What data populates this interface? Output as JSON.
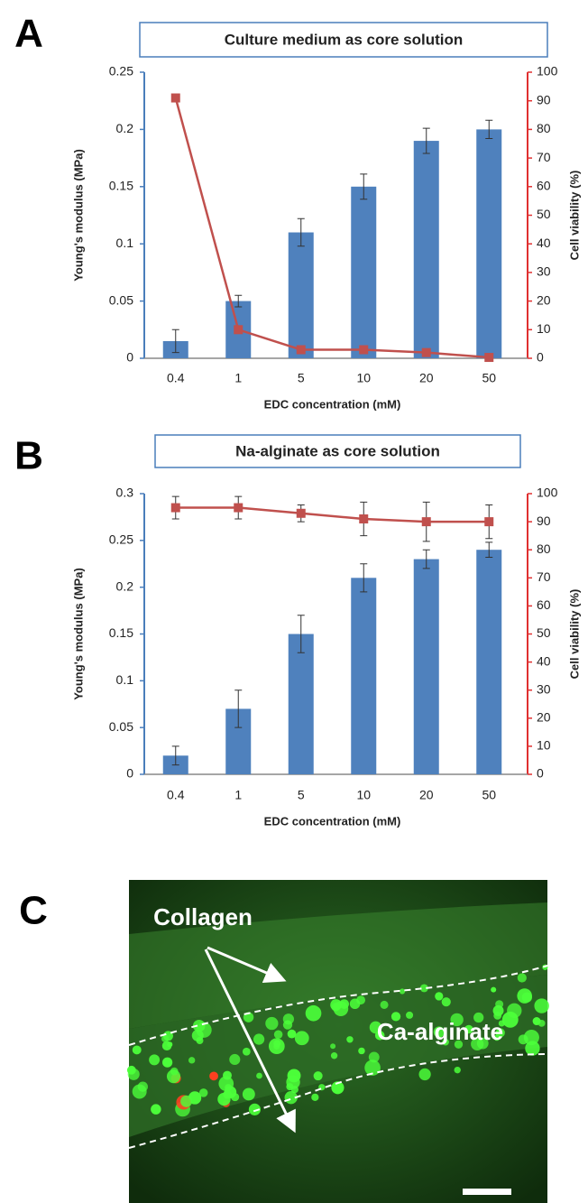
{
  "chart_data": [
    {
      "type": "bar-line",
      "panel_label": "A",
      "title": "Culture medium as core solution",
      "xlabel": "EDC concentration (mM)",
      "ylabel": "Young's modulus (MPa)",
      "y2label": "Cell viability (%)",
      "categories": [
        "0.4",
        "1",
        "5",
        "10",
        "20",
        "50"
      ],
      "series": [
        {
          "type": "bar",
          "color": "#4f81bd",
          "values": [
            0.015,
            0.05,
            0.11,
            0.15,
            0.19,
            0.2
          ],
          "errors": [
            0.01,
            0.005,
            0.012,
            0.011,
            0.011,
            0.008
          ]
        },
        {
          "type": "line",
          "axis": "y2",
          "color": "#c0504d",
          "values": [
            91,
            10,
            3,
            3,
            2,
            0.3
          ]
        }
      ],
      "ylim": [
        0,
        0.25
      ],
      "yticks": [
        0,
        0.05,
        0.1,
        0.15,
        0.2,
        0.25
      ],
      "y2lim": [
        0,
        100
      ],
      "y2ticks": [
        0,
        10,
        20,
        30,
        40,
        50,
        60,
        70,
        80,
        90,
        100
      ]
    },
    {
      "type": "bar-line",
      "panel_label": "B",
      "title": "Na-alginate as core solution",
      "xlabel": "EDC concentration (mM)",
      "ylabel": "Young's modulus (MPa)",
      "y2label": "Cell viability (%)",
      "categories": [
        "0.4",
        "1",
        "5",
        "10",
        "20",
        "50"
      ],
      "series": [
        {
          "type": "bar",
          "color": "#4f81bd",
          "values": [
            0.02,
            0.07,
            0.15,
            0.21,
            0.23,
            0.24
          ],
          "errors": [
            0.01,
            0.02,
            0.02,
            0.015,
            0.01,
            0.008
          ]
        },
        {
          "type": "line",
          "axis": "y2",
          "color": "#c0504d",
          "values": [
            95,
            95,
            93,
            91,
            90,
            90
          ],
          "errors": [
            4,
            4,
            3,
            6,
            7,
            6
          ]
        }
      ],
      "ylim": [
        0,
        0.3
      ],
      "yticks": [
        0,
        0.05,
        0.1,
        0.15,
        0.2,
        0.25,
        0.3
      ],
      "y2lim": [
        0,
        100
      ],
      "y2ticks": [
        0,
        10,
        20,
        30,
        40,
        50,
        60,
        70,
        80,
        90,
        100
      ]
    }
  ],
  "image": {
    "panel_label": "C",
    "labels": [
      "Collagen",
      "Ca-alginate"
    ]
  }
}
